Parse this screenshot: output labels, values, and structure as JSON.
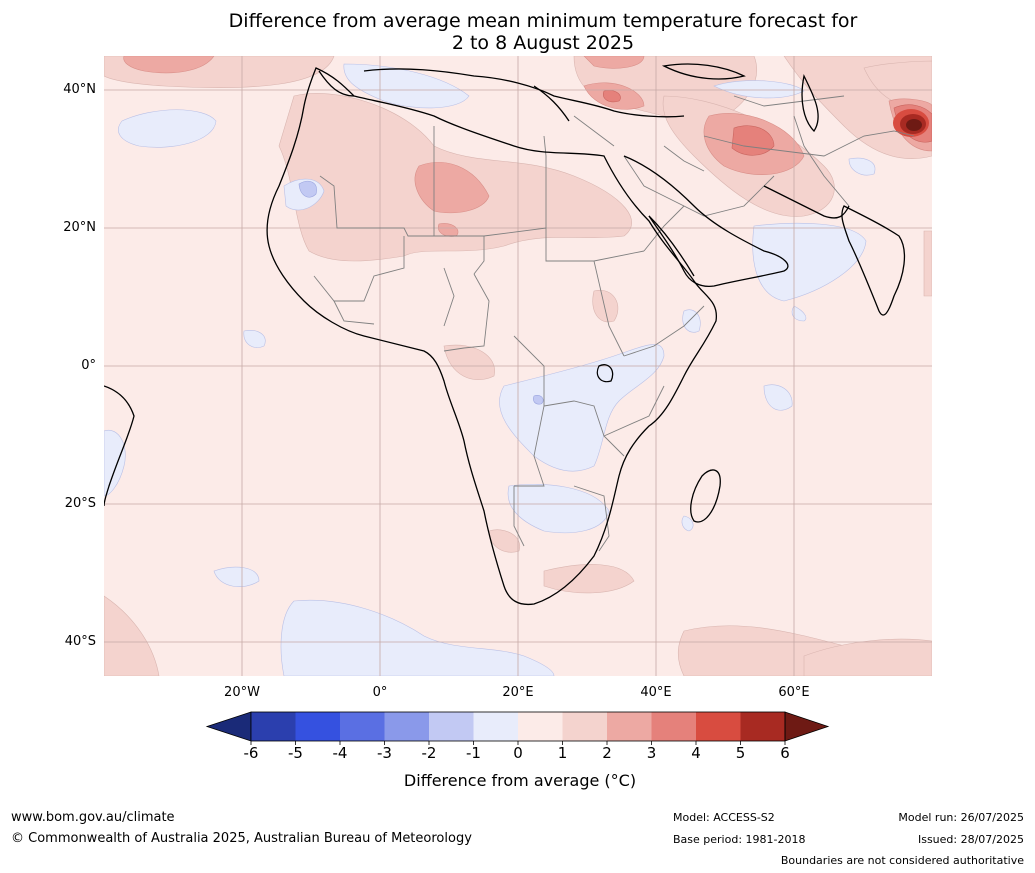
{
  "title_line1": "Difference from average mean minimum temperature forecast for",
  "title_line2": "2 to 8 August 2025",
  "lat_labels": [
    "40°N",
    "20°N",
    "0°",
    "20°S",
    "40°S"
  ],
  "lon_labels": [
    "20°W",
    "0°",
    "20°E",
    "40°E",
    "60°E"
  ],
  "colorbar": {
    "ticks": [
      "-6",
      "-5",
      "-4",
      "-3",
      "-2",
      "-1",
      "0",
      "1",
      "2",
      "3",
      "4",
      "5",
      "6"
    ],
    "colors": [
      "#1a2a78",
      "#2b3fae",
      "#3551e0",
      "#5a6fe3",
      "#8a99ea",
      "#c2c9f3",
      "#e8ecfb",
      "#fcebe8",
      "#f4d3ce",
      "#eda9a3",
      "#e5817b",
      "#d84c40",
      "#a82a22",
      "#6e1a14"
    ],
    "label": "Difference from average (°C)"
  },
  "footer": {
    "website": "www.bom.gov.au/climate",
    "copyright": "© Commonwealth of Australia 2025, Australian Bureau of Meteorology",
    "model": "Model: ACCESS-S2",
    "base_period": "Base period: 1981-2018",
    "model_run": "Model run: 26/07/2025",
    "issued": "Issued: 28/07/2025",
    "disclaimer": "Boundaries are not considered authoritative"
  }
}
